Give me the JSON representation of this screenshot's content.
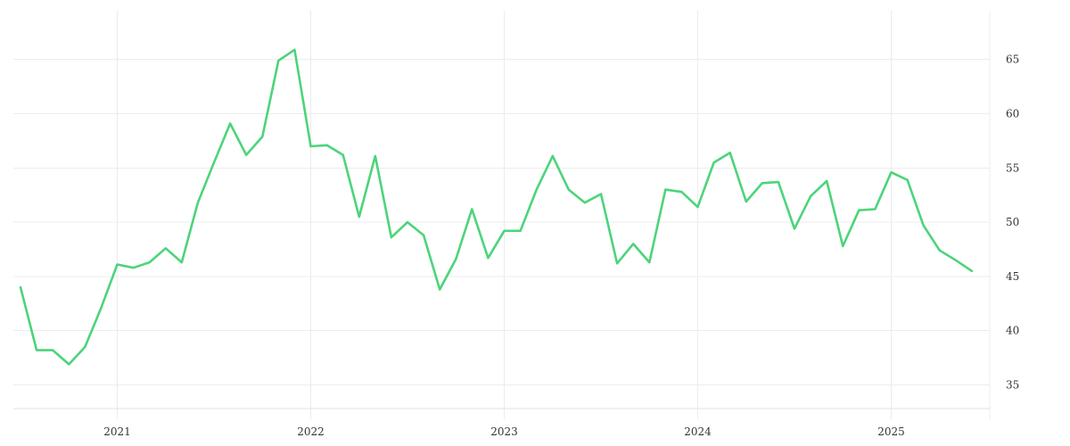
{
  "chart_data": {
    "type": "line",
    "title": "",
    "xlabel": "",
    "ylabel": "",
    "x_ticks": [
      "2021",
      "2022",
      "2023",
      "2024",
      "2025"
    ],
    "y_ticks": [
      "35",
      "40",
      "45",
      "50",
      "55",
      "60",
      "65"
    ],
    "xlim": [
      "2020-07-01",
      "2025-07-01"
    ],
    "ylim": [
      32,
      69.5
    ],
    "y_axis_position": "right",
    "grid": true,
    "legend": false,
    "series": [
      {
        "color": "#4cd47a",
        "x": [
          "2020-07",
          "2020-08",
          "2020-09",
          "2020-10",
          "2020-11",
          "2020-12",
          "2021-01",
          "2021-02",
          "2021-03",
          "2021-04",
          "2021-05",
          "2021-06",
          "2021-07",
          "2021-08",
          "2021-09",
          "2021-10",
          "2021-11",
          "2021-12",
          "2022-01",
          "2022-02",
          "2022-03",
          "2022-04",
          "2022-05",
          "2022-06",
          "2022-07",
          "2022-08",
          "2022-09",
          "2022-10",
          "2022-11",
          "2022-12",
          "2023-01",
          "2023-02",
          "2023-03",
          "2023-04",
          "2023-05",
          "2023-06",
          "2023-07",
          "2023-08",
          "2023-09",
          "2023-10",
          "2023-11",
          "2023-12",
          "2024-01",
          "2024-02",
          "2024-03",
          "2024-04",
          "2024-05",
          "2024-06",
          "2024-07",
          "2024-08",
          "2024-09",
          "2024-10",
          "2024-11",
          "2024-12",
          "2025-01",
          "2025-02",
          "2025-03",
          "2025-04",
          "2025-05",
          "2025-06"
        ],
        "values": [
          44.0,
          38.2,
          38.2,
          36.9,
          38.5,
          42.1,
          46.1,
          45.8,
          46.3,
          47.6,
          46.3,
          51.8,
          55.5,
          59.1,
          56.2,
          57.9,
          64.9,
          65.9,
          57.0,
          57.1,
          56.2,
          50.5,
          56.1,
          48.6,
          50.0,
          48.8,
          43.8,
          46.6,
          51.2,
          46.7,
          49.2,
          49.2,
          53.0,
          56.1,
          53.0,
          51.8,
          52.6,
          46.2,
          48.0,
          46.3,
          53.0,
          52.8,
          51.4,
          55.5,
          56.4,
          51.9,
          53.6,
          53.7,
          49.4,
          52.4,
          53.8,
          47.8,
          51.1,
          51.2,
          54.6,
          53.9,
          49.7,
          47.4,
          46.5,
          45.5
        ]
      }
    ]
  }
}
